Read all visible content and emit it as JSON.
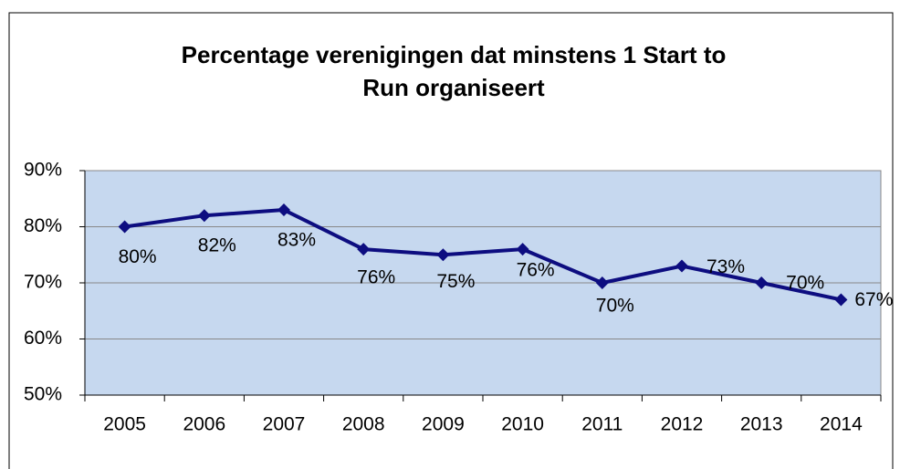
{
  "chart_data": {
    "type": "line",
    "title": [
      "Percentage verenigingen dat minstens 1 Start to",
      "Run organiseert"
    ],
    "categories": [
      "2005",
      "2006",
      "2007",
      "2008",
      "2009",
      "2010",
      "2011",
      "2012",
      "2013",
      "2014"
    ],
    "values": [
      80,
      82,
      83,
      76,
      75,
      76,
      70,
      73,
      70,
      67
    ],
    "value_labels": [
      "80%",
      "82%",
      "83%",
      "76%",
      "75%",
      "76%",
      "70%",
      "73%",
      "70%",
      "67%"
    ],
    "color": "#0d0d80",
    "ylim": [
      50,
      90
    ],
    "yticks": [
      {
        "value": 50,
        "label": "50%"
      },
      {
        "value": 60,
        "label": "60%"
      },
      {
        "value": 70,
        "label": "70%"
      },
      {
        "value": 80,
        "label": "80%"
      },
      {
        "value": 90,
        "label": "90%"
      }
    ],
    "grid": true
  }
}
